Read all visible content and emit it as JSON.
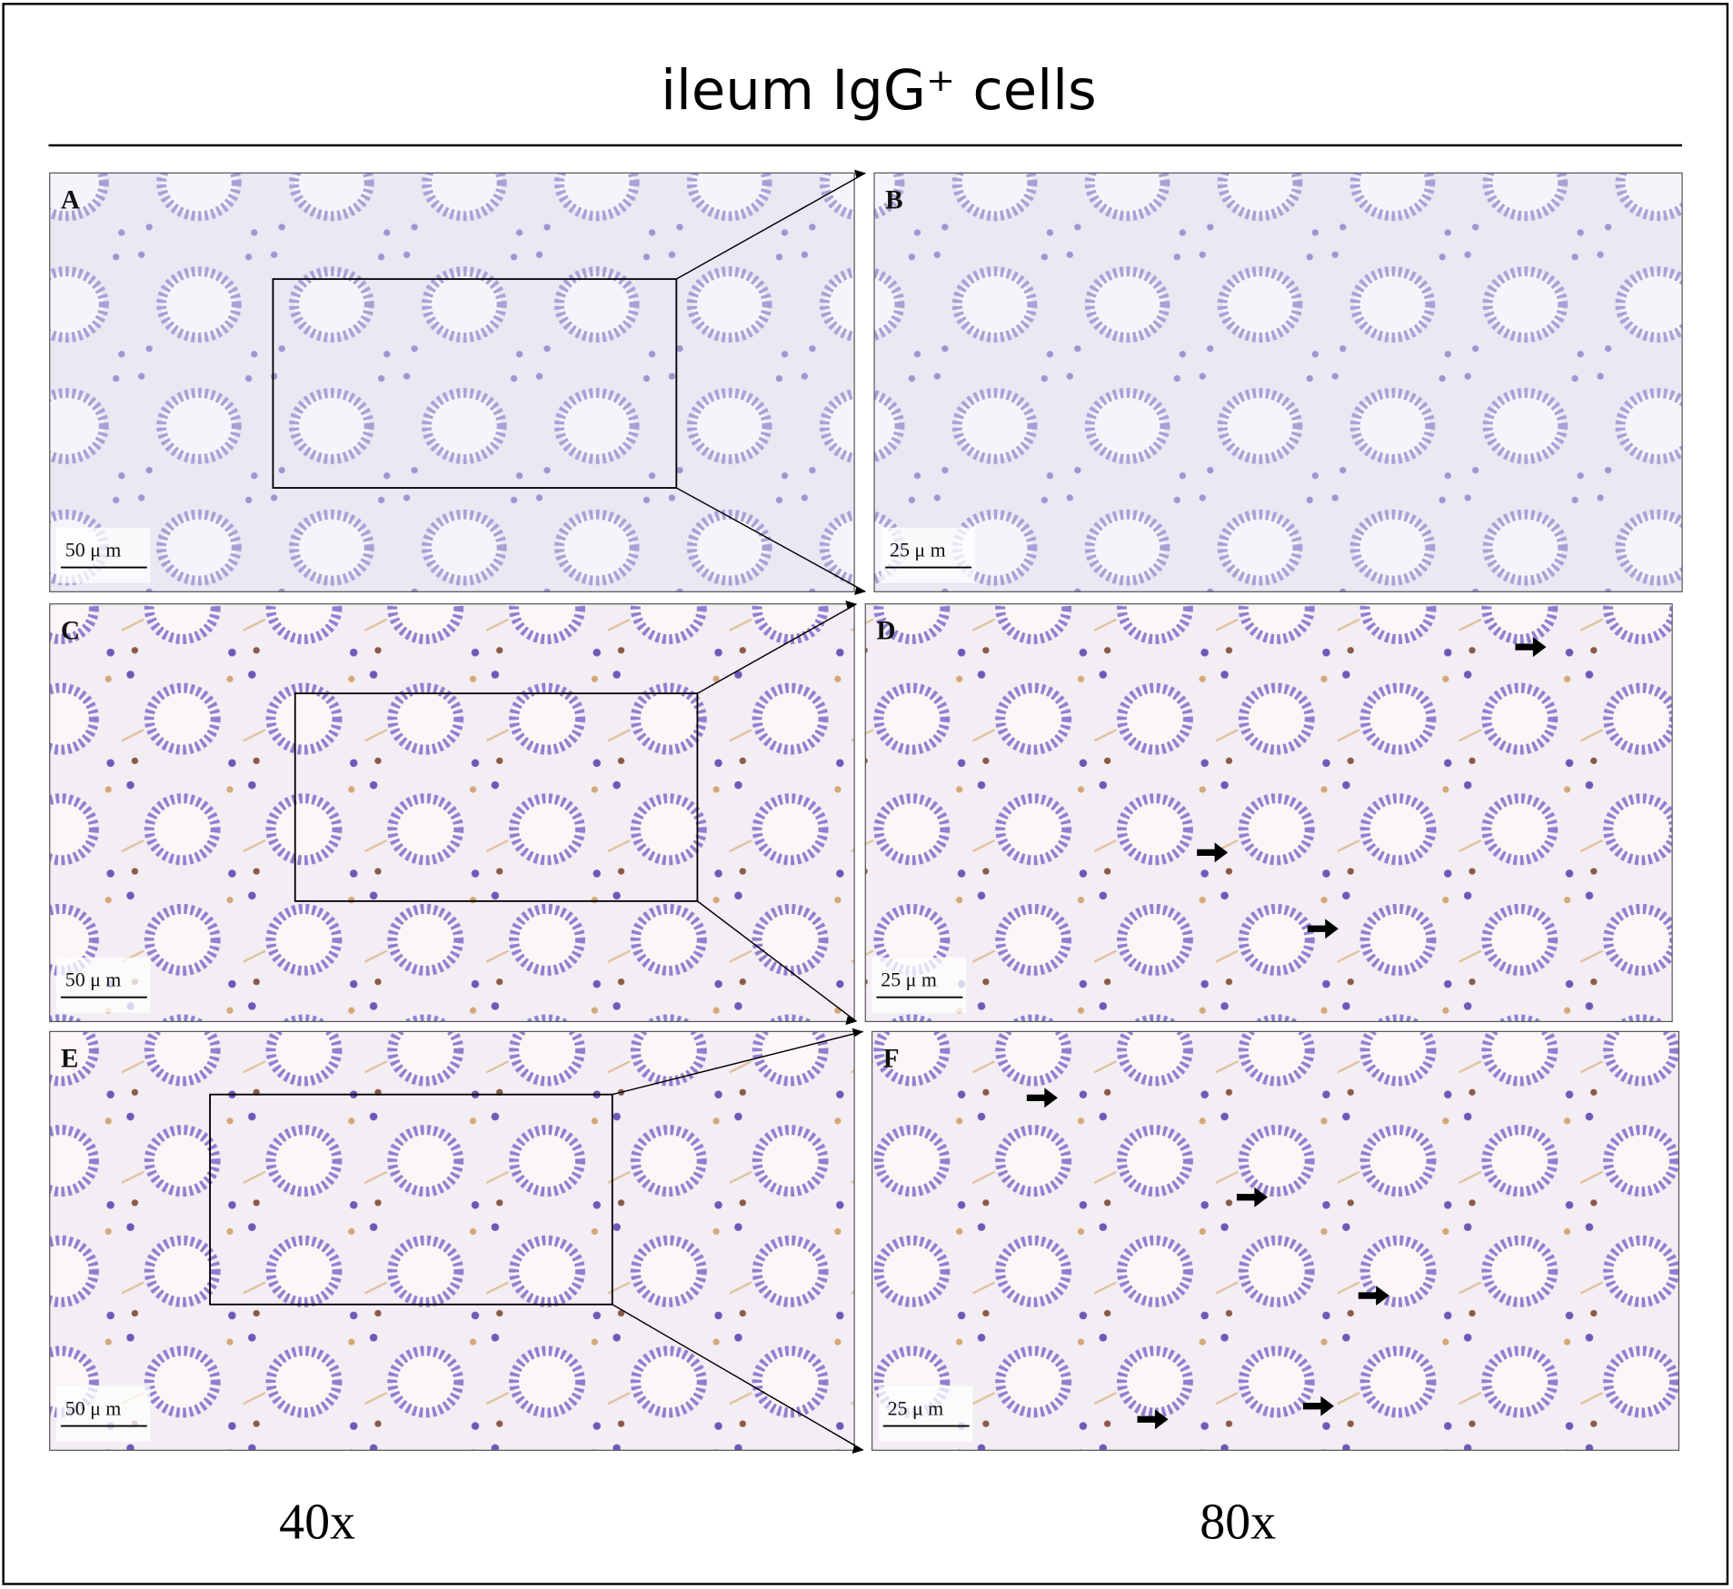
{
  "title": "ileum IgG⁺ cells",
  "panels": [
    {
      "label": "A",
      "scale_bar": "50 μ m"
    },
    {
      "label": "B",
      "scale_bar": "25 μ m"
    },
    {
      "label": "C",
      "scale_bar": "50 μ m"
    },
    {
      "label": "D",
      "scale_bar": "25 μ m"
    },
    {
      "label": "E",
      "scale_bar": "50 μ m"
    },
    {
      "label": "F",
      "scale_bar": "25 μ m"
    }
  ],
  "columns": [
    "40x",
    "80x"
  ]
}
